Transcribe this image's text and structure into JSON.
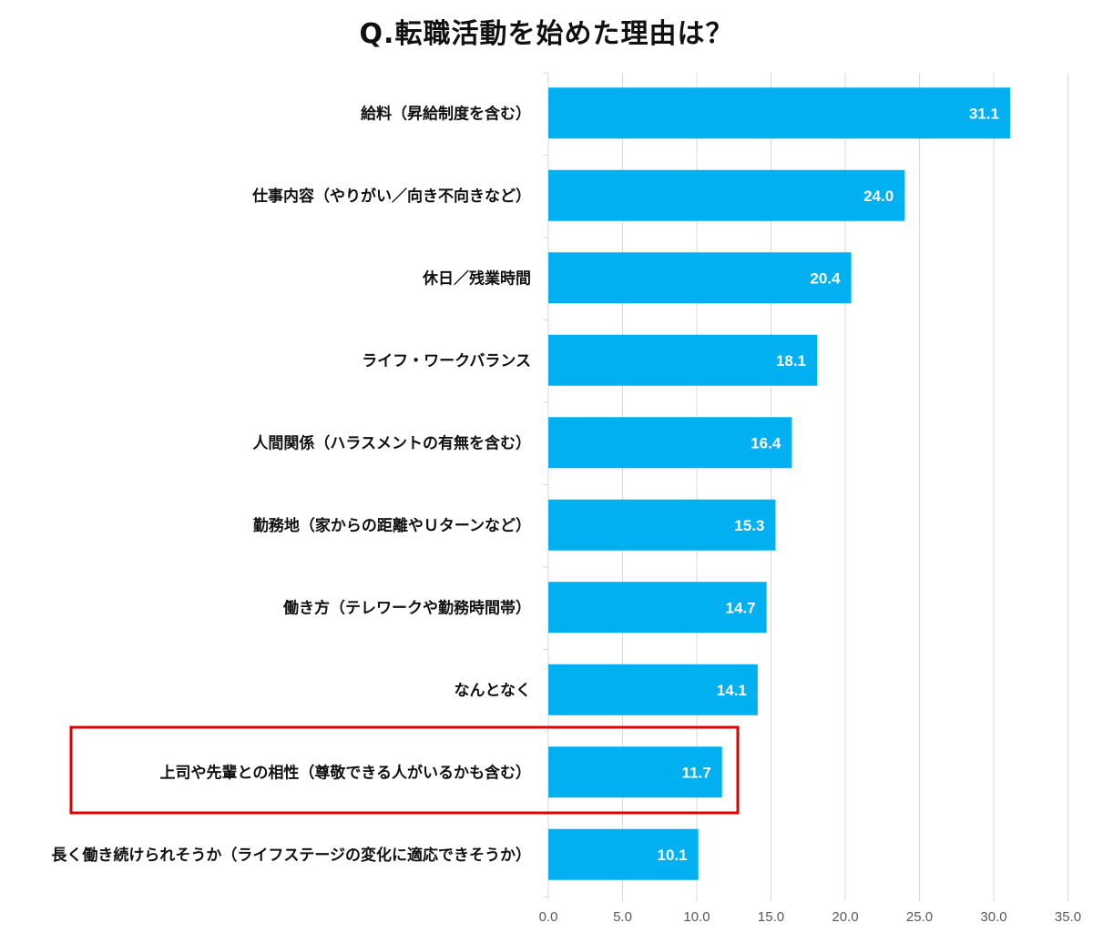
{
  "chart_data": {
    "type": "bar",
    "orientation": "horizontal",
    "title": "Q.転職活動を始めた理由は？",
    "categories": [
      "給料（昇給制度を含む）",
      "仕事内容（やりがい／向き不向きなど）",
      "休日／残業時間",
      "ライフ・ワークバランス",
      "人間関係（ハラスメントの有無を含む）",
      "勤務地（家からの距離やＵターンなど）",
      "働き方（テレワークや勤務時間帯）",
      "なんとなく",
      "上司や先輩との相性（尊敬できる人がいるかも含む）",
      "長く働き続けられそうか（ライフステージの変化に適応できそうか）"
    ],
    "values": [
      31.1,
      24.0,
      20.4,
      18.1,
      16.4,
      15.3,
      14.7,
      14.1,
      11.7,
      10.1
    ],
    "value_labels": [
      "31.1",
      "24.0",
      "20.4",
      "18.1",
      "16.4",
      "15.3",
      "14.7",
      "14.1",
      "11.7",
      "10.1"
    ],
    "xlim": [
      0,
      35
    ],
    "xticks": [
      "0.0",
      "5.0",
      "10.0",
      "15.0",
      "20.0",
      "25.0",
      "30.0",
      "35.0"
    ],
    "grid": true,
    "highlighted_category": "上司や先輩との相性（尊敬できる人がいるかも含む）",
    "colors": {
      "bar": "#00b0f0",
      "grid": "#d9d9d9",
      "highlight_box": "#e00000"
    }
  }
}
